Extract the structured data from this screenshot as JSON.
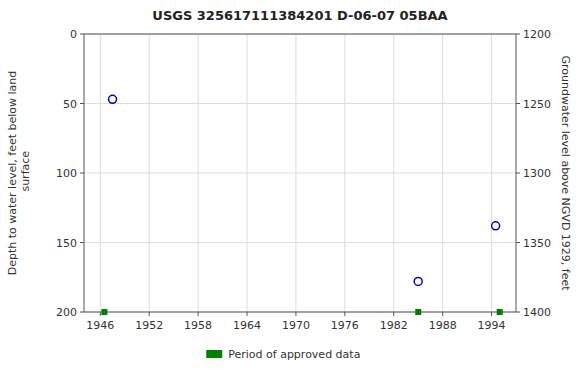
{
  "chart_data": {
    "type": "scatter",
    "title": "USGS 325617111384201 D-06-07 05BAA",
    "y_label": "Depth to water level, feet below land\n surface",
    "y2_label": "Groundwater level above NGVD 1929, feet",
    "xlim": [
      1944,
      1997
    ],
    "xticks": [
      1946,
      1952,
      1958,
      1964,
      1970,
      1976,
      1982,
      1988,
      1994
    ],
    "ylim": [
      200,
      0
    ],
    "yticks": [
      0,
      50,
      100,
      150,
      200
    ],
    "y2lim": [
      1400,
      1200
    ],
    "y2ticks": [
      1400,
      1350,
      1300,
      1250,
      1200
    ],
    "grid": true,
    "legend": "bottom",
    "series": [
      {
        "color": "#0000cc",
        "marker": "circle",
        "x": [
          1947.5,
          1985.0,
          1994.5
        ],
        "values": [
          47,
          178,
          138
        ]
      },
      {
        "name": "Period of approved data",
        "color": "#008000",
        "marker": "square",
        "x": [
          1946.5,
          1985.0,
          1995.0
        ],
        "values": [
          200,
          200,
          200
        ]
      }
    ]
  }
}
